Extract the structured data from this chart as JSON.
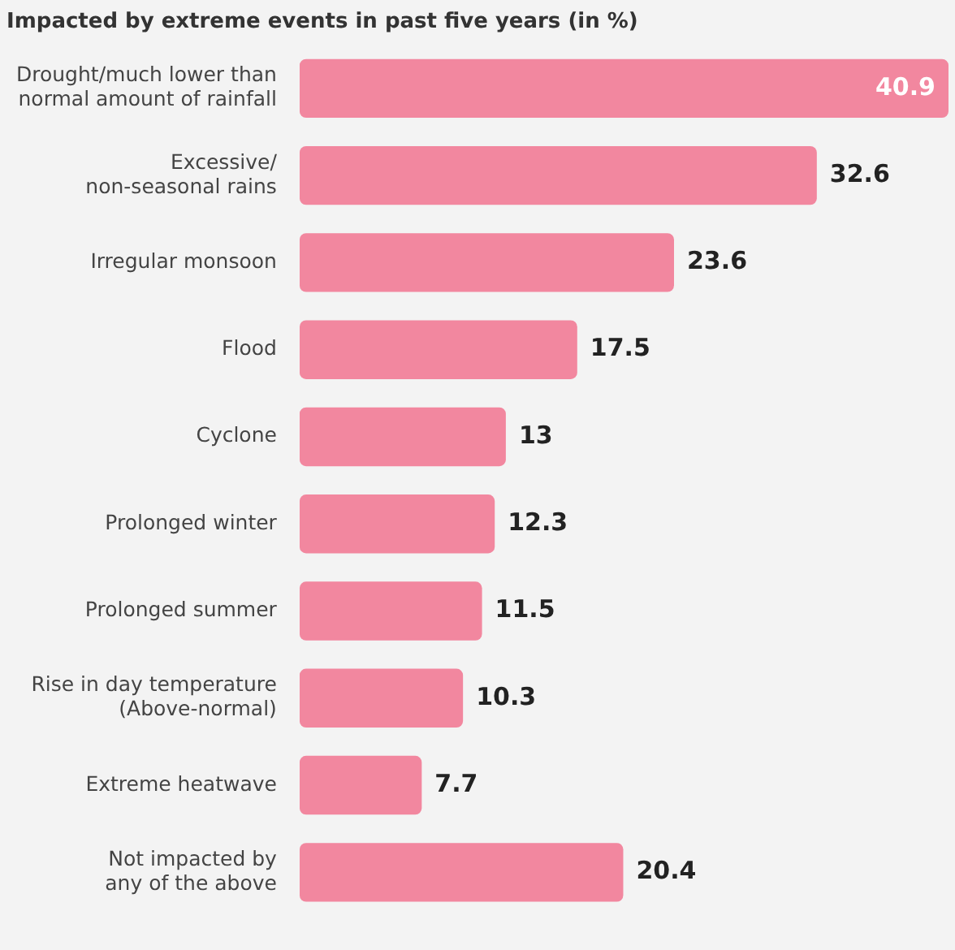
{
  "chart_data": {
    "type": "bar",
    "orientation": "horizontal",
    "title": "Impacted by extreme events in past five years (in %)",
    "categories": [
      "Drought/much lower than\nnormal amount of rainfall",
      "Excessive/\nnon-seasonal rains",
      "Irregular monsoon",
      "Flood",
      "Cyclone",
      "Prolonged winter",
      "Prolonged summer",
      "Rise in day temperature\n(Above-normal)",
      "Extreme heatwave",
      "Not impacted by\nany of the above"
    ],
    "values": [
      40.9,
      32.6,
      23.6,
      17.5,
      13,
      12.3,
      11.5,
      10.3,
      7.7,
      20.4
    ],
    "color": "#f2879f",
    "data_labels": true
  }
}
